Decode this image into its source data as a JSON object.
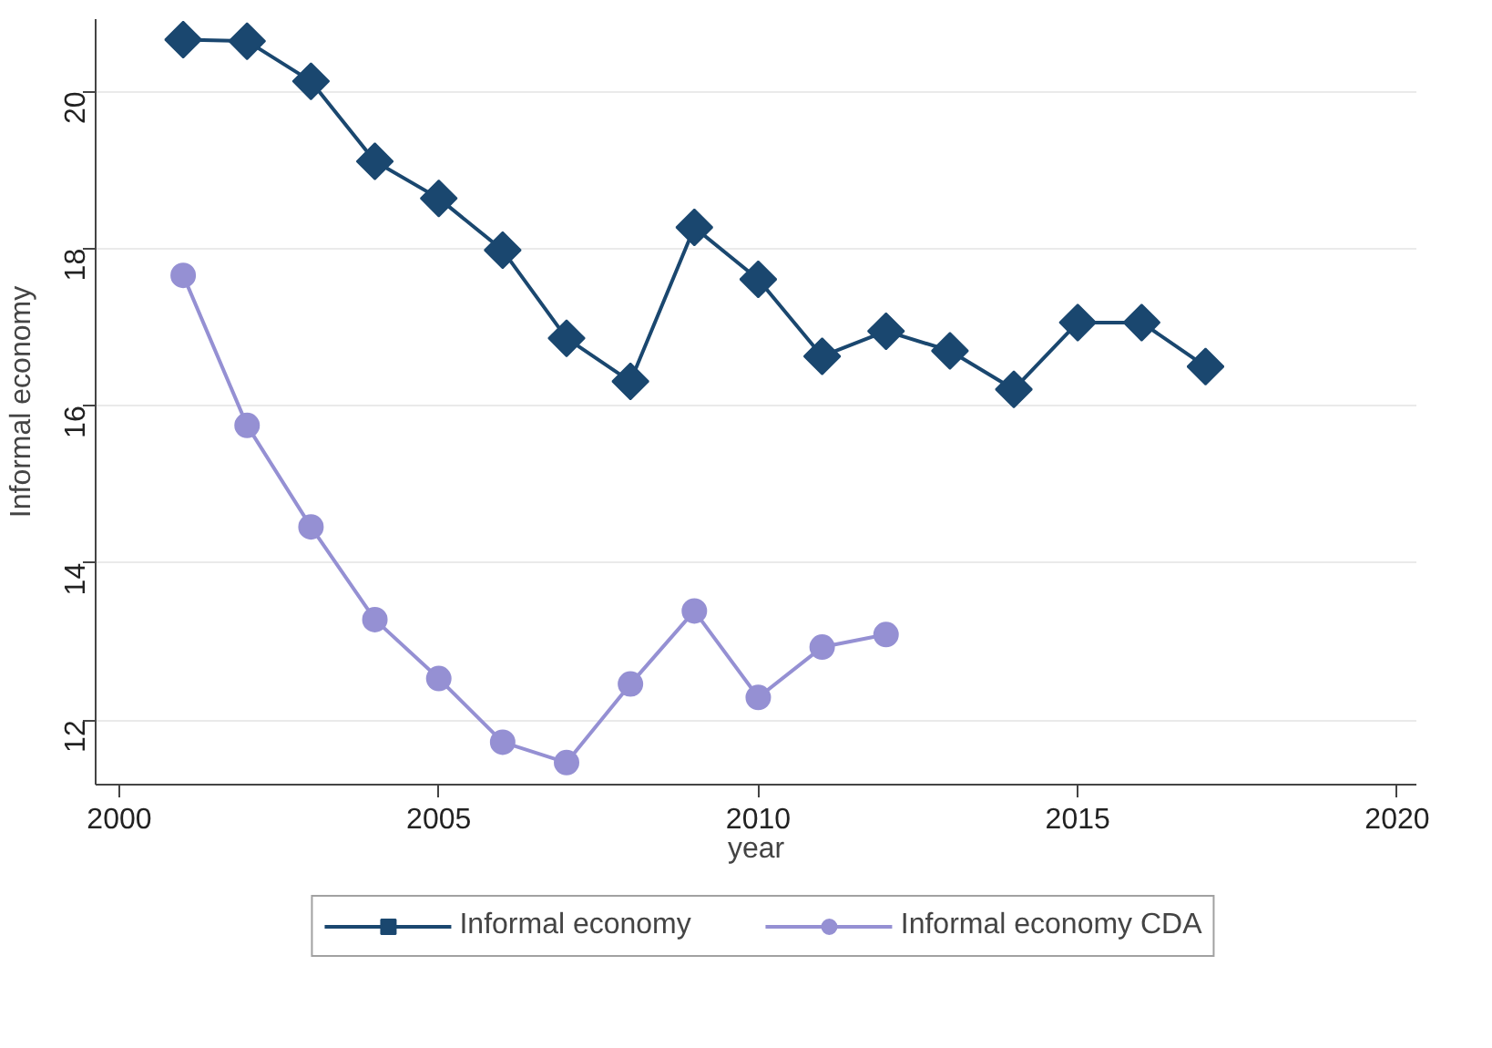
{
  "chart_data": {
    "type": "line",
    "xlabel": "year",
    "ylabel": "Informal economy",
    "xlim": [
      1999.63,
      2020.3
    ],
    "ylim": [
      11.18,
      20.92
    ],
    "xticks": [
      2000,
      2005,
      2010,
      2015,
      2020
    ],
    "yticks": [
      12,
      14,
      16,
      18,
      20
    ],
    "grid": "y",
    "legend": "bottom",
    "series": [
      {
        "name": "Informal economy",
        "color": "#1a476f",
        "marker": "diamond",
        "x": [
          2001,
          2002,
          2003,
          2004,
          2005,
          2006,
          2007,
          2008,
          2009,
          2010,
          2011,
          2012,
          2013,
          2014,
          2015,
          2016,
          2017
        ],
        "values": [
          20.66,
          20.64,
          20.13,
          19.11,
          18.64,
          17.98,
          16.86,
          16.31,
          18.27,
          17.61,
          16.63,
          16.95,
          16.7,
          16.21,
          17.06,
          17.06,
          16.5
        ]
      },
      {
        "name": "Informal economy CDA",
        "color": "#9590d3",
        "marker": "circle",
        "x": [
          2001,
          2002,
          2003,
          2004,
          2005,
          2006,
          2007,
          2008,
          2009,
          2010,
          2011,
          2012
        ],
        "values": [
          17.66,
          15.75,
          14.46,
          13.28,
          12.53,
          11.72,
          11.46,
          12.46,
          13.39,
          12.29,
          12.93,
          13.09
        ]
      }
    ]
  }
}
